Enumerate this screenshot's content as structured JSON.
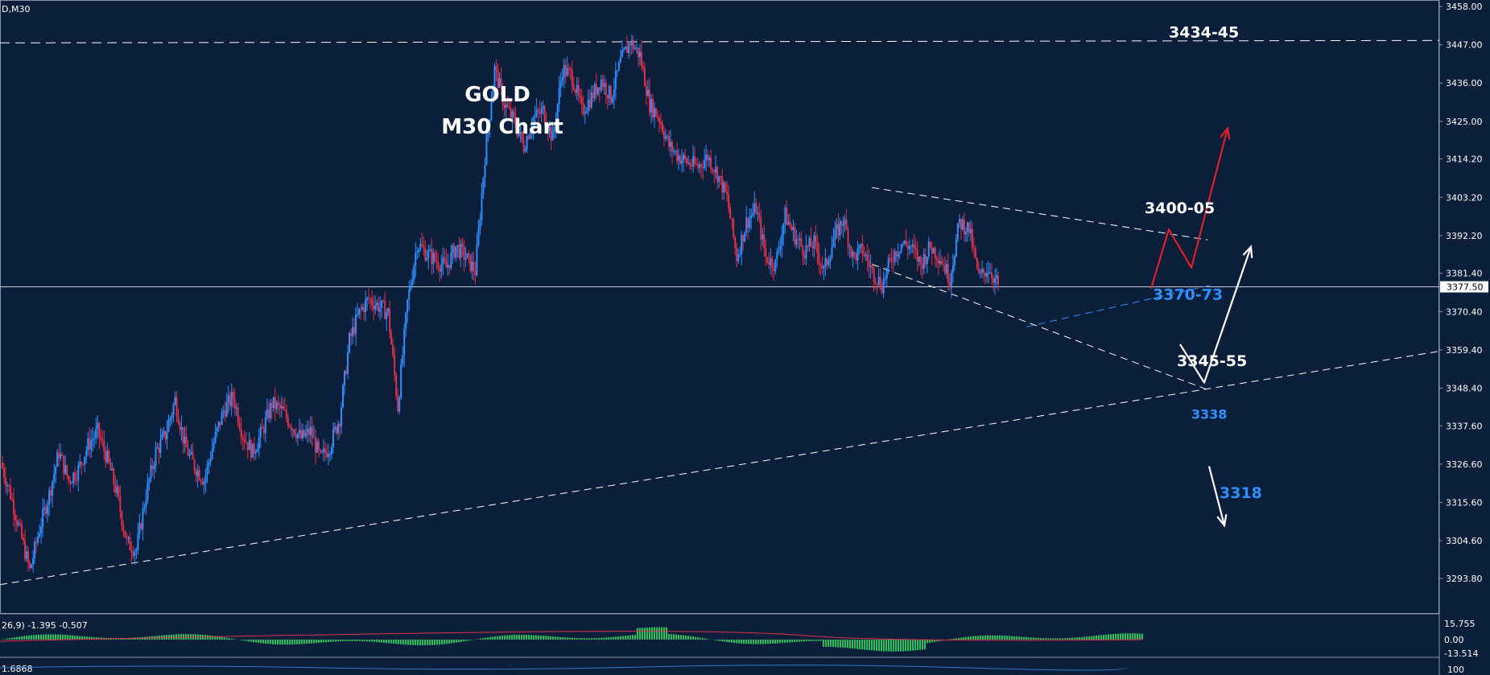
{
  "symbol_label": "D,M30",
  "chart_data": {
    "type": "candlestick",
    "title_line1": "GOLD",
    "title_line2": "M30 Chart",
    "ylim": [
      3288.0,
      3458.0
    ],
    "y_ticks": [
      "3458.00",
      "3447.00",
      "3436.00",
      "3425.00",
      "3414.20",
      "3403.20",
      "3392.20",
      "3381.40",
      "3370.40",
      "3359.40",
      "3348.40",
      "3337.60",
      "3326.60",
      "3315.60",
      "3304.60",
      "3293.80"
    ],
    "current_price": 3377.5,
    "current_price_label": "3377.50",
    "bull_color": "#2f8fff",
    "bear_color": "#e0304a",
    "annotations": [
      {
        "label": "3434-45",
        "price": 3448.0,
        "color": "#ffffff"
      },
      {
        "label": "3400-05",
        "price": 3400.0,
        "color": "#ffffff"
      },
      {
        "label": "3370-73",
        "price": 3372.0,
        "color": "#2f8fff"
      },
      {
        "label": "3345-55",
        "price": 3349.0,
        "color": "#ffffff"
      },
      {
        "label": "3338",
        "price": 3338.0,
        "color": "#2f8fff"
      },
      {
        "label": "3318",
        "price": 3318.0,
        "color": "#2f8fff"
      }
    ],
    "resistance_level": 3448.0,
    "triangle": {
      "upper": [
        3406.0,
        3391.0
      ],
      "lower": [
        3384.0,
        3348.0
      ]
    },
    "uptrend_line": [
      3292.0,
      3359.0
    ],
    "ascending_support": [
      3366.0,
      3378.0
    ],
    "price_path": [
      [
        0,
        3327
      ],
      [
        12,
        3318
      ],
      [
        24,
        3307
      ],
      [
        36,
        3296
      ],
      [
        48,
        3308
      ],
      [
        60,
        3318
      ],
      [
        72,
        3330
      ],
      [
        84,
        3322
      ],
      [
        96,
        3325
      ],
      [
        108,
        3332
      ],
      [
        120,
        3336
      ],
      [
        132,
        3328
      ],
      [
        144,
        3318
      ],
      [
        156,
        3304
      ],
      [
        168,
        3302
      ],
      [
        180,
        3318
      ],
      [
        192,
        3330
      ],
      [
        204,
        3335
      ],
      [
        216,
        3345
      ],
      [
        228,
        3332
      ],
      [
        240,
        3326
      ],
      [
        252,
        3322
      ],
      [
        264,
        3333
      ],
      [
        276,
        3342
      ],
      [
        288,
        3346
      ],
      [
        300,
        3335
      ],
      [
        312,
        3330
      ],
      [
        324,
        3336
      ],
      [
        336,
        3344
      ],
      [
        348,
        3342
      ],
      [
        360,
        3338
      ],
      [
        372,
        3334
      ],
      [
        384,
        3336
      ],
      [
        396,
        3328
      ],
      [
        408,
        3332
      ],
      [
        420,
        3340
      ],
      [
        432,
        3362
      ],
      [
        444,
        3370
      ],
      [
        456,
        3374
      ],
      [
        468,
        3372
      ],
      [
        480,
        3370
      ],
      [
        492,
        3343
      ],
      [
        504,
        3373
      ],
      [
        516,
        3390
      ],
      [
        528,
        3387
      ],
      [
        540,
        3385
      ],
      [
        552,
        3383
      ],
      [
        564,
        3389
      ],
      [
        576,
        3386
      ],
      [
        588,
        3382
      ],
      [
        600,
        3415
      ],
      [
        612,
        3440
      ],
      [
        624,
        3430
      ],
      [
        636,
        3425
      ],
      [
        648,
        3418
      ],
      [
        660,
        3426
      ],
      [
        672,
        3428
      ],
      [
        684,
        3420
      ],
      [
        696,
        3440
      ],
      [
        708,
        3438
      ],
      [
        720,
        3428
      ],
      [
        732,
        3432
      ],
      [
        744,
        3437
      ],
      [
        756,
        3432
      ],
      [
        768,
        3442
      ],
      [
        780,
        3448
      ],
      [
        792,
        3444
      ],
      [
        804,
        3430
      ],
      [
        816,
        3426
      ],
      [
        828,
        3418
      ],
      [
        840,
        3415
      ],
      [
        852,
        3413
      ],
      [
        864,
        3412
      ],
      [
        876,
        3415
      ],
      [
        888,
        3410
      ],
      [
        900,
        3403
      ],
      [
        912,
        3386
      ],
      [
        924,
        3396
      ],
      [
        936,
        3400
      ],
      [
        948,
        3386
      ],
      [
        960,
        3384
      ],
      [
        972,
        3398
      ],
      [
        984,
        3392
      ],
      [
        996,
        3388
      ],
      [
        1008,
        3390
      ],
      [
        1020,
        3382
      ],
      [
        1032,
        3391
      ],
      [
        1044,
        3397
      ],
      [
        1056,
        3386
      ],
      [
        1068,
        3388
      ],
      [
        1080,
        3382
      ],
      [
        1092,
        3378
      ],
      [
        1104,
        3386
      ],
      [
        1116,
        3390
      ],
      [
        1128,
        3389
      ],
      [
        1140,
        3384
      ],
      [
        1152,
        3389
      ],
      [
        1164,
        3386
      ],
      [
        1176,
        3380
      ],
      [
        1188,
        3396
      ],
      [
        1200,
        3394
      ],
      [
        1212,
        3380
      ],
      [
        1224,
        3383
      ],
      [
        1236,
        3378
      ]
    ],
    "macd": {
      "params_label": "26,9) -1.395 -0.507",
      "y_ticks": [
        "15.755",
        "0.00",
        "-13.514"
      ]
    },
    "rsi": {
      "value_label": "1.6868",
      "tick_label": "100"
    }
  }
}
